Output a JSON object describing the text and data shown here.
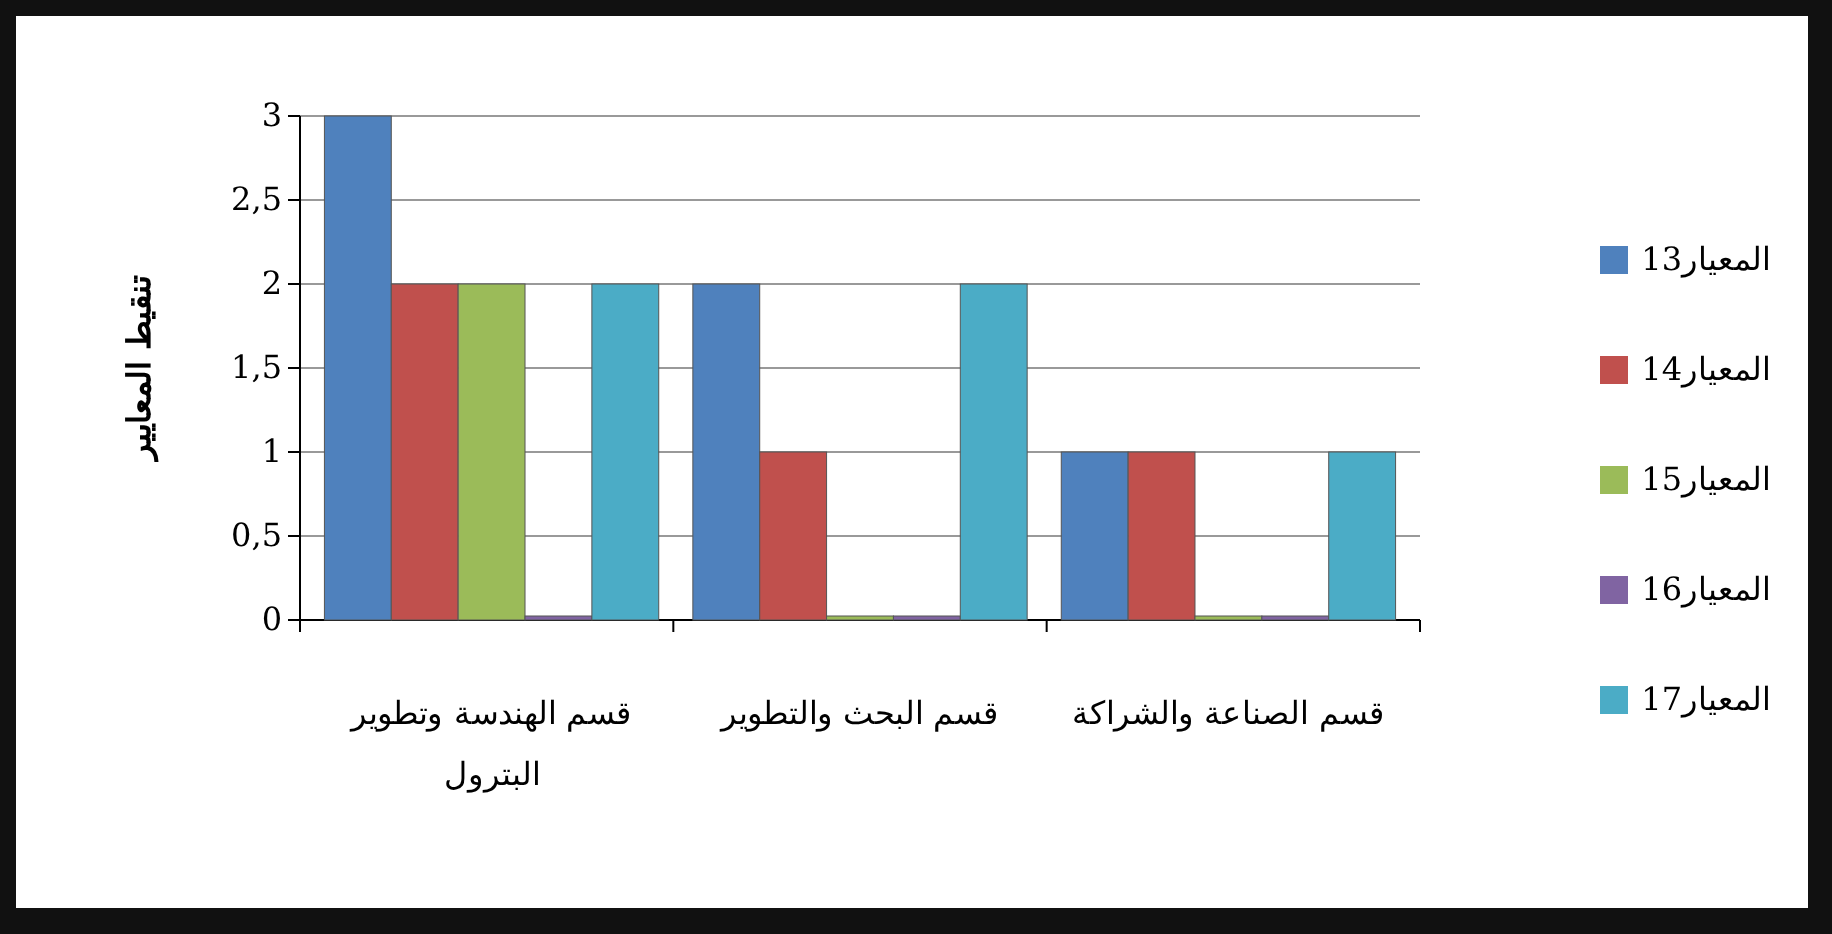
{
  "chart_data": {
    "type": "bar",
    "ylabel": "تنقيط المعايير",
    "categories": [
      "قسم الهندسة وتطوير البترول",
      "قسم البحث والتطوير",
      "قسم الصناعة والشراكة"
    ],
    "series": [
      {
        "name": "المعيار13",
        "color": "#4f81bd",
        "values": [
          3,
          2,
          1
        ]
      },
      {
        "name": "المعيار14",
        "color": "#c0504d",
        "values": [
          2,
          1,
          1
        ]
      },
      {
        "name": "المعيار15",
        "color": "#9bbb59",
        "values": [
          2,
          0,
          0
        ]
      },
      {
        "name": "المعيار16",
        "color": "#8064a2",
        "values": [
          0,
          0,
          0
        ]
      },
      {
        "name": "المعيار17",
        "color": "#4bacc6",
        "values": [
          2,
          2,
          1
        ]
      }
    ],
    "ylim": [
      0,
      3
    ],
    "yticks": [
      0,
      {
        "value": 0.5,
        "label": "0,5"
      },
      1,
      {
        "value": 1.5,
        "label": "1,5"
      },
      2,
      {
        "value": 2.5,
        "label": "2,5"
      },
      3
    ],
    "grid": "y",
    "legend": "right"
  }
}
